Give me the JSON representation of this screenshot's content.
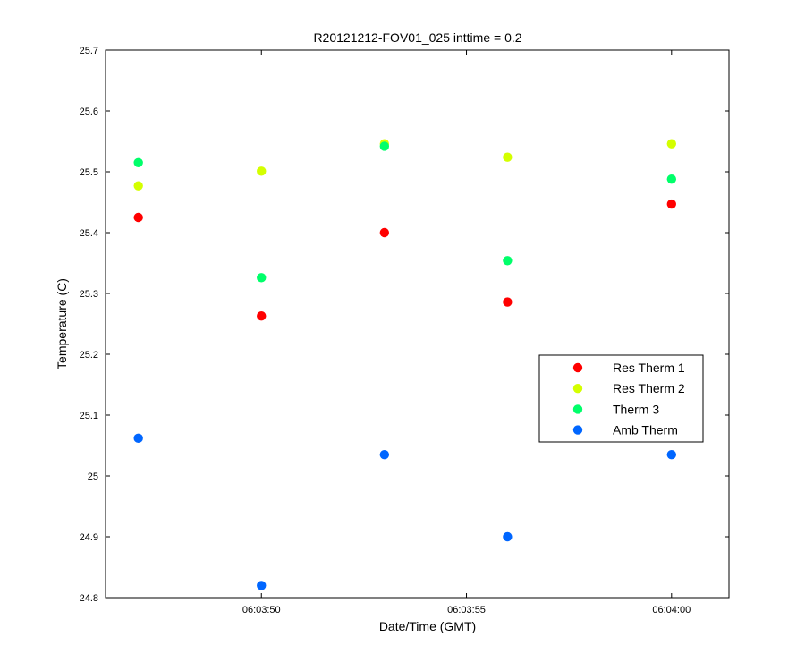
{
  "chart_data": {
    "type": "scatter",
    "title": "R20121212-FOV01_025 inttime = 0.2",
    "xlabel": "Date/Time (GMT)",
    "ylabel": "Temperature (C)",
    "x_tick_labels": [
      "06:03:50",
      "06:03:55",
      "06:04:00"
    ],
    "x_tick_values": [
      50,
      55,
      60
    ],
    "xlim": [
      46.2,
      61.4
    ],
    "ylim": [
      24.8,
      25.7
    ],
    "y_tick_values": [
      24.8,
      24.9,
      25,
      25.1,
      25.2,
      25.3,
      25.4,
      25.5,
      25.6,
      25.7
    ],
    "y_tick_labels": [
      "24.8",
      "24.9",
      "25",
      "25.1",
      "25.2",
      "25.3",
      "25.4",
      "25.5",
      "25.6",
      "25.7"
    ],
    "grid": false,
    "legend_position": "right",
    "x": [
      47.0,
      50.0,
      53.0,
      56.0,
      60.0
    ],
    "series": [
      {
        "name": "Res Therm 1",
        "color": "#ff0000",
        "values": [
          25.425,
          25.263,
          25.4,
          25.286,
          25.447
        ]
      },
      {
        "name": "Res Therm 2",
        "color": "#d4ff00",
        "values": [
          25.477,
          25.501,
          25.546,
          25.524,
          25.546
        ]
      },
      {
        "name": "Therm 3",
        "color": "#00ff6a",
        "values": [
          25.515,
          25.326,
          25.542,
          25.354,
          25.488
        ]
      },
      {
        "name": "Amb Therm",
        "color": "#0066ff",
        "values": [
          25.062,
          24.82,
          25.035,
          24.9,
          25.035
        ]
      }
    ]
  }
}
